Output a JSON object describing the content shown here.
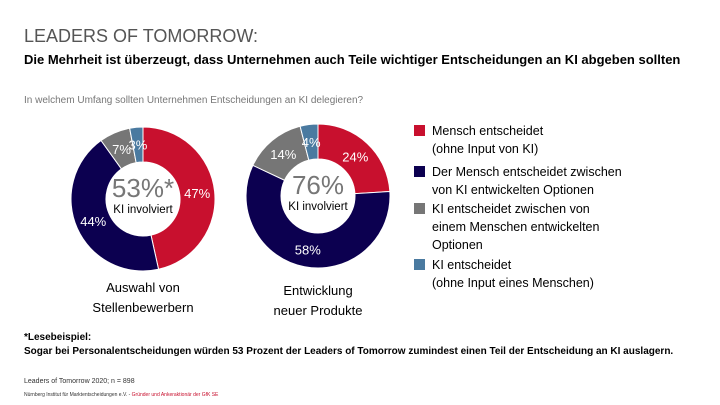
{
  "header": {
    "title": "LEADERS OF TOMORROW:",
    "subtitle": "Die Mehrheit ist überzeugt, dass Unternehmen auch Teile wichtiger Entscheidungen an KI abgeben sollten",
    "question": "In welchem Umfang sollten Unternehmen Entscheidungen an KI delegieren?"
  },
  "chart_data": [
    {
      "type": "pie",
      "title": "Auswahl von Stellenbewerbern",
      "center_value": "53%*",
      "center_label": "KI involviert",
      "categories": [
        "Mensch entscheidet (ohne Input von KI)",
        "Der Mensch entscheidet zwischen von KI entwickelten Optionen",
        "KI entscheidet zwischen von einem Menschen entwickelten Optionen",
        "KI entscheidet (ohne Input eines Menschen)"
      ],
      "values": [
        47,
        44,
        7,
        3
      ],
      "labels": [
        "47%",
        "44%",
        "7%",
        "3%"
      ]
    },
    {
      "type": "pie",
      "title": "Entwicklung neuer Produkte",
      "center_value": "76%",
      "center_label": "KI involviert",
      "categories": [
        "Mensch entscheidet (ohne Input von KI)",
        "Der Mensch entscheidet zwischen von KI entwickelten Optionen",
        "KI entscheidet zwischen von einem Menschen entwickelten Optionen",
        "KI entscheidet (ohne Input eines Menschen)"
      ],
      "values": [
        24,
        58,
        14,
        4
      ],
      "labels": [
        "24%",
        "58%",
        "14%",
        "4%"
      ]
    }
  ],
  "chart_titles": {
    "left_1": "Auswahl von",
    "left_2": "Stellenbewerbern",
    "right_1": "Entwicklung",
    "right_2": "neuer Produkte"
  },
  "legend": [
    {
      "line1": "Mensch entscheidet",
      "line2": "(ohne Input von KI)",
      "line3": "",
      "color": "#c8102e"
    },
    {
      "line1": "Der Mensch entscheidet zwischen",
      "line2": "von KI entwickelten Optionen",
      "line3": "",
      "color": "#0c0050"
    },
    {
      "line1": "KI entscheidet zwischen von",
      "line2": "einem Menschen entwickelten",
      "line3": "Optionen",
      "color": "#767676"
    },
    {
      "line1": "KI entscheidet",
      "line2": "(ohne Input eines Menschen)",
      "line3": "",
      "color": "#4a7aa0"
    }
  ],
  "footer": {
    "note_heading": "*Lesebeispiel:",
    "note": "Sogar bei Personalentscheidungen würden 53 Prozent der Leaders of Tomorrow zumindest einen Teil der Entscheidung an KI auslagern.",
    "source": "Leaders of Tomorrow 2020; n = 898",
    "org": "Nürnberg Institut für Marktentscheidungen e.V.  -",
    "org_red": "Gründer und Ankeraktionär der GfK SE"
  }
}
